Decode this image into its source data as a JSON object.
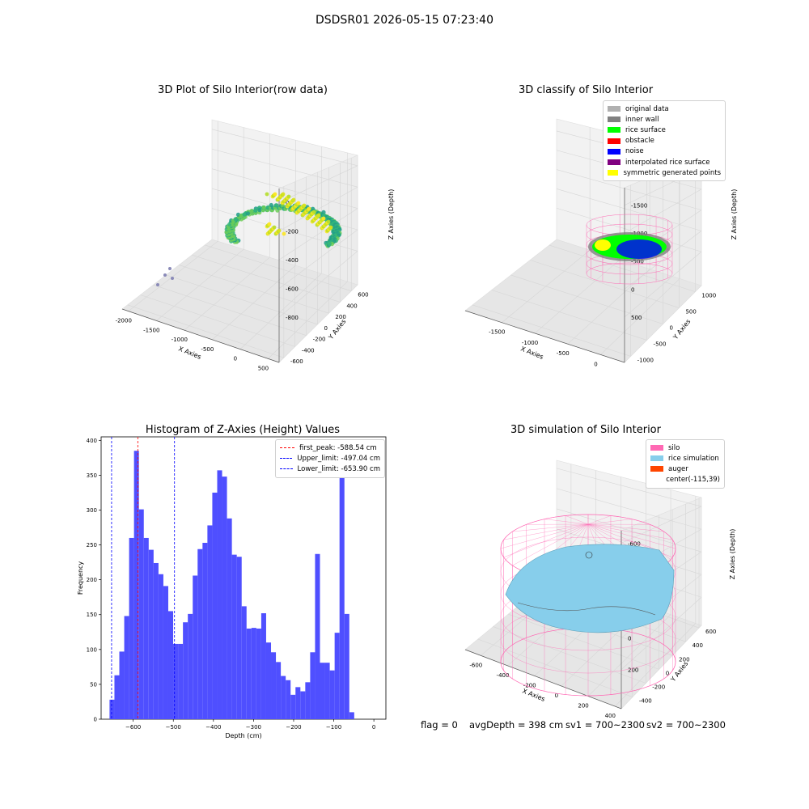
{
  "suptitle": "DSDSR01 2026-05-15 07:23:40",
  "footer": {
    "flag": "flag = 0",
    "avgDepth": "avgDepth = 398 cm",
    "sv1": "sv1 = 700~2300",
    "sv2": "sv2 = 700~2300"
  },
  "chart_data": [
    {
      "type": "scatter",
      "title": "3D Plot of Silo Interior(row data)",
      "xlabel": "X Axies",
      "ylabel": "Y Axies",
      "zlabel": "Z Axies (Depth)",
      "x_ticks": [
        "-2000",
        "-1500",
        "-1000",
        "-500",
        "0",
        "500"
      ],
      "y_ticks": [
        "-600",
        "-400",
        "-200",
        "0",
        "200",
        "400",
        "600"
      ],
      "z_ticks": [
        "0",
        "-200",
        "-400",
        "-600",
        "-800"
      ],
      "colormap": "viridis"
    },
    {
      "type": "scatter",
      "title": "3D classify of Silo Interior",
      "xlabel": "X Axies",
      "ylabel": "Y Axies",
      "zlabel": "Z Axies (Depth)",
      "x_ticks": [
        "-1500",
        "-1000",
        "-500",
        "0"
      ],
      "y_ticks": [
        "-1000",
        "-500",
        "0",
        "500",
        "1000"
      ],
      "z_ticks": [
        "500",
        "0",
        "-500",
        "-1000",
        "-1500"
      ],
      "legend": [
        {
          "label": "original data",
          "color": "#b0b0b0"
        },
        {
          "label": "inner wall",
          "color": "#808080"
        },
        {
          "label": "rice surface",
          "color": "#00ff00"
        },
        {
          "label": "obstacle",
          "color": "#ff0000"
        },
        {
          "label": "noise",
          "color": "#0000ff"
        },
        {
          "label": "interpolated rice surface",
          "color": "#800080"
        },
        {
          "label": "symmetric generated points",
          "color": "#ffff00"
        }
      ]
    },
    {
      "type": "bar",
      "title": "Histogram of Z-Axies (Height) Values",
      "xlabel": "Depth (cm)",
      "ylabel": "Frequency",
      "xlim": [
        -680,
        30
      ],
      "ylim": [
        0,
        405
      ],
      "x_ticks": [
        -600,
        -500,
        -400,
        -300,
        -200,
        -100,
        0
      ],
      "y_ticks": [
        0,
        50,
        100,
        150,
        200,
        250,
        300,
        350,
        400
      ],
      "bin_start": -659,
      "bin_width": 12.2,
      "values": [
        28,
        63,
        97,
        148,
        260,
        385,
        301,
        260,
        243,
        224,
        208,
        191,
        155,
        108,
        108,
        139,
        151,
        206,
        244,
        253,
        278,
        325,
        357,
        348,
        288,
        236,
        233,
        162,
        130,
        131,
        130,
        152,
        110,
        96,
        82,
        62,
        56,
        35,
        46,
        40,
        53,
        96,
        237,
        81,
        81,
        70,
        124,
        380,
        151,
        10
      ],
      "bar_color": "#4f4fff",
      "vlines": [
        {
          "label": "first_peak: -588.54 cm",
          "x": -588.54,
          "color": "#ff0000"
        },
        {
          "label": "Upper_limit: -497.04 cm",
          "x": -497.04,
          "color": "#0000ff"
        },
        {
          "label": "Lower_limit: -653.90 cm",
          "x": -653.9,
          "color": "#0000ff"
        }
      ]
    },
    {
      "type": "area",
      "title": "3D simulation of Silo Interior",
      "xlabel": "X Axies",
      "ylabel": "Y Axies",
      "zlabel": "Z Axies (Depth)",
      "x_ticks": [
        "-600",
        "-400",
        "-200",
        "0",
        "200",
        "400"
      ],
      "y_ticks": [
        "-400",
        "-200",
        "0",
        "200",
        "400",
        "600"
      ],
      "z_ticks": [
        "200",
        "0",
        "-200",
        "-400",
        "-600"
      ],
      "legend": [
        {
          "label": "silo",
          "color": "#ff69b4"
        },
        {
          "label": "rice simulation",
          "color": "#87ceeb"
        },
        {
          "label": "auger",
          "color": "#ff4500"
        },
        {
          "label": "center(-115,39)",
          "color": ""
        }
      ]
    }
  ]
}
